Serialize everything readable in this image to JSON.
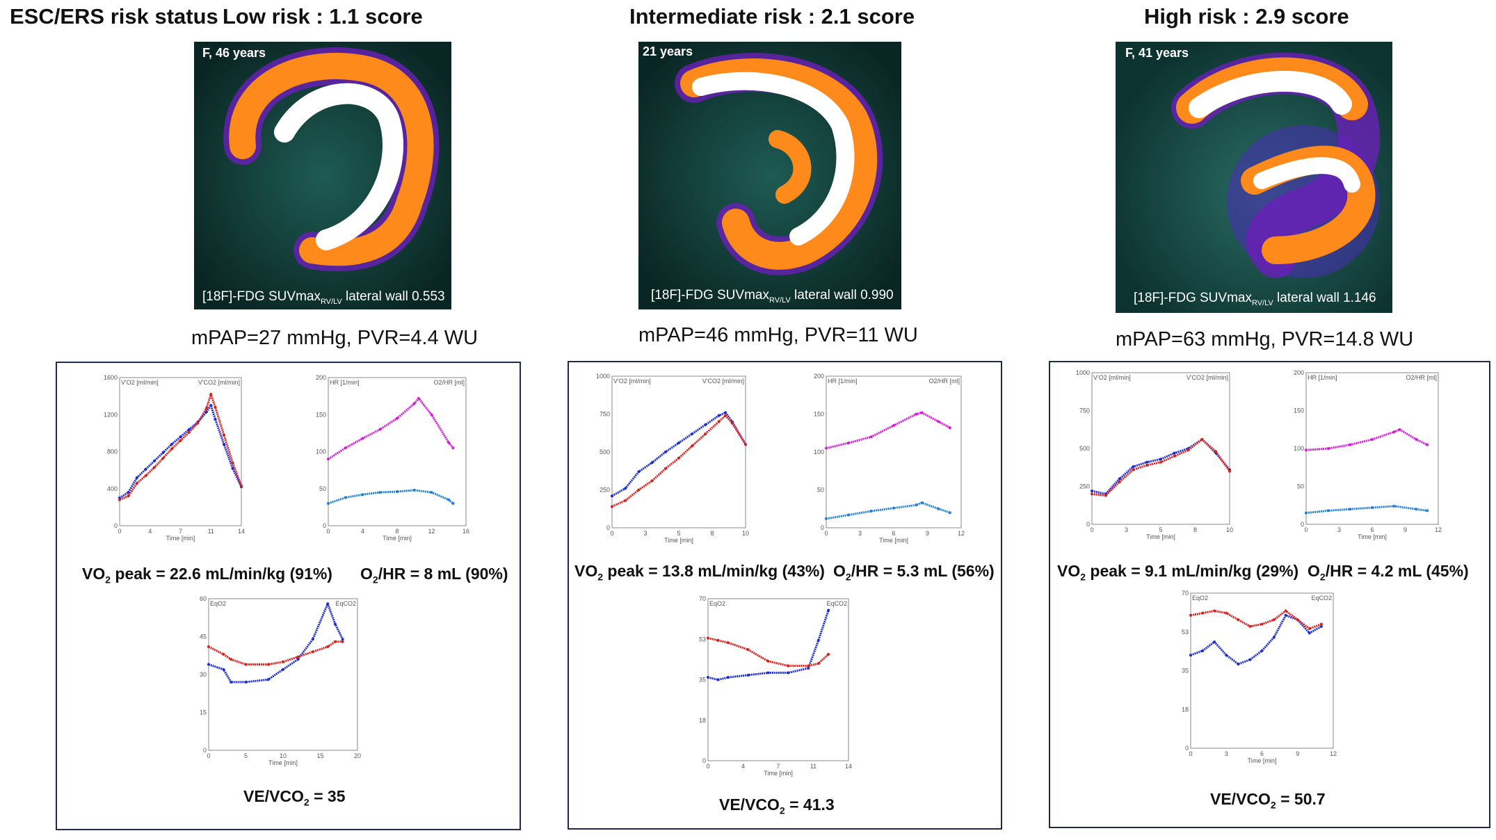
{
  "header": {
    "status_label": "ESC/ERS risk status",
    "low": "Low risk : 1.1 score",
    "intermediate": "Intermediate risk : 2.1 score",
    "high": "High risk : 2.9 score"
  },
  "panels": [
    {
      "patient": "F, 46 years",
      "pet_caption_pre": "[18F]-FDG SUVmax",
      "pet_caption_sub": "RV/LV",
      "pet_caption_post": " lateral wall 0.553",
      "hemodynamics": "mPAP=27 mmHg, PVR=4.4 WU",
      "vo2_pre": "VO",
      "vo2_sub": "2",
      "vo2_post": " peak = 22.6 mL/min/kg (91%)",
      "o2hr_pre": "O",
      "o2hr_sub": "2",
      "o2hr_post": "/HR = 8 mL (90%)",
      "ve_pre": "VE/VCO",
      "ve_sub": "2",
      "ve_post": " = 35"
    },
    {
      "patient": "21 years",
      "pet_caption_pre": "[18F]-FDG SUVmax",
      "pet_caption_sub": "RV/LV",
      "pet_caption_post": " lateral wall 0.990",
      "hemodynamics": "mPAP=46 mmHg, PVR=11 WU",
      "vo2_pre": "VO",
      "vo2_sub": "2",
      "vo2_post": " peak = 13.8 mL/min/kg (43%)",
      "o2hr_pre": "O",
      "o2hr_sub": "2",
      "o2hr_post": "/HR = 5.3 mL (56%)",
      "ve_pre": "VE/VCO",
      "ve_sub": "2",
      "ve_post": " = 41.3"
    },
    {
      "patient": "F, 41 years",
      "pet_caption_pre": "[18F]-FDG SUVmax",
      "pet_caption_sub": "RV/LV",
      "pet_caption_post": " lateral wall 1.146",
      "hemodynamics": "mPAP=63 mmHg, PVR=14.8 WU",
      "vo2_pre": "VO",
      "vo2_sub": "2",
      "vo2_post": " peak = 9.1 mL/min/kg (29%)",
      "o2hr_pre": "O",
      "o2hr_sub": "2",
      "o2hr_post": "/HR = 4.2 mL (45%)",
      "ve_pre": "VE/VCO",
      "ve_sub": "2",
      "ve_post": " = 50.7"
    }
  ],
  "chart_data": [
    {
      "type": "scatter",
      "panel": "low",
      "name": "VO2/VCO2 vs time",
      "xlabel": "Time [min]",
      "ylabel_left": "V'O2 [ml/min]",
      "ylabel_right": "V'CO2 [ml/min]",
      "xlim": [
        0,
        14
      ],
      "ylim": [
        0,
        1600
      ],
      "series": [
        {
          "name": "V'O2",
          "color": "#1a2bd6",
          "x": [
            0,
            1,
            2,
            3,
            4,
            5,
            6,
            7,
            8,
            9,
            10,
            10.5,
            11,
            12,
            13,
            14
          ],
          "y": [
            300,
            360,
            520,
            610,
            700,
            790,
            880,
            960,
            1040,
            1120,
            1230,
            1300,
            1150,
            880,
            620,
            420
          ]
        },
        {
          "name": "V'CO2",
          "color": "#d8201c",
          "x": [
            0,
            1,
            2,
            3,
            4,
            5,
            6,
            7,
            8,
            9,
            10,
            10.5,
            11,
            12,
            13,
            14
          ],
          "y": [
            280,
            320,
            460,
            540,
            630,
            730,
            830,
            920,
            1010,
            1110,
            1270,
            1420,
            1280,
            980,
            680,
            430
          ]
        }
      ]
    },
    {
      "type": "scatter",
      "panel": "low",
      "name": "HR and O2/HR",
      "xlabel": "Time [min]",
      "ylabel_left": "HR [1/min]",
      "ylabel_right": "O2/HR [ml]",
      "xlim": [
        0,
        16
      ],
      "ylim": [
        0,
        200
      ],
      "series": [
        {
          "name": "HR",
          "color": "#d81ad8",
          "x": [
            0,
            2,
            4,
            6,
            8,
            10,
            10.5,
            12,
            14,
            14.5
          ],
          "y": [
            90,
            105,
            118,
            130,
            145,
            165,
            172,
            150,
            112,
            105
          ]
        },
        {
          "name": "O2/HR",
          "color": "#1f7fd8",
          "x": [
            0,
            2,
            4,
            6,
            8,
            10,
            12,
            14,
            14.5
          ],
          "y": [
            30,
            38,
            42,
            45,
            46,
            48,
            45,
            35,
            30
          ]
        }
      ]
    },
    {
      "type": "scatter",
      "panel": "low",
      "name": "Ventilatory equivalents",
      "xlabel": "Time [min]",
      "ylabel_left": "EqO2",
      "ylabel_right": "EqCO2",
      "xlim": [
        0,
        20
      ],
      "ylim": [
        0,
        60
      ],
      "series": [
        {
          "name": "EqO2",
          "color": "#1a2bd6",
          "x": [
            0,
            2,
            3,
            5,
            8,
            10,
            12,
            14,
            16,
            17,
            18
          ],
          "y": [
            34,
            32,
            27,
            27,
            28,
            32,
            36,
            44,
            58,
            50,
            44
          ]
        },
        {
          "name": "EqCO2",
          "color": "#d8201c",
          "x": [
            0,
            2,
            3,
            5,
            8,
            10,
            12,
            14,
            16,
            17,
            18
          ],
          "y": [
            41,
            38,
            36,
            34,
            34,
            35,
            37,
            39,
            41,
            43,
            43
          ]
        }
      ]
    },
    {
      "type": "scatter",
      "panel": "intermediate",
      "name": "VO2/VCO2 vs time",
      "xlabel": "Time [min]",
      "ylabel_left": "V'O2 [ml/min]",
      "ylabel_right": "V'CO2 [ml/min]",
      "xlim": [
        0,
        10
      ],
      "ylim": [
        0,
        1000
      ],
      "series": [
        {
          "name": "V'O2",
          "color": "#1a2bd6",
          "x": [
            0,
            1,
            2,
            3,
            4,
            5,
            6,
            7,
            8,
            8.5,
            9,
            10
          ],
          "y": [
            210,
            260,
            370,
            430,
            500,
            560,
            620,
            680,
            740,
            760,
            700,
            550
          ]
        },
        {
          "name": "V'CO2",
          "color": "#d8201c",
          "x": [
            0,
            1,
            2,
            3,
            4,
            5,
            6,
            7,
            8,
            8.5,
            9,
            10
          ],
          "y": [
            140,
            180,
            250,
            310,
            390,
            460,
            540,
            620,
            700,
            740,
            690,
            550
          ]
        }
      ]
    },
    {
      "type": "scatter",
      "panel": "intermediate",
      "name": "HR and O2/HR",
      "xlabel": "Time [min]",
      "ylabel_left": "HR [1/min]",
      "ylabel_right": "O2/HR [ml]",
      "xlim": [
        0,
        12
      ],
      "ylim": [
        0,
        200
      ],
      "series": [
        {
          "name": "HR",
          "color": "#d81ad8",
          "x": [
            0,
            2,
            4,
            6,
            8,
            8.5,
            10,
            11
          ],
          "y": [
            105,
            112,
            120,
            135,
            150,
            152,
            140,
            132
          ]
        },
        {
          "name": "O2/HR",
          "color": "#1f7fd8",
          "x": [
            0,
            2,
            4,
            6,
            8,
            8.5,
            10,
            11
          ],
          "y": [
            12,
            17,
            22,
            26,
            30,
            33,
            25,
            20
          ]
        }
      ]
    },
    {
      "type": "scatter",
      "panel": "intermediate",
      "name": "Ventilatory equivalents",
      "xlabel": "Time [min]",
      "ylabel_left": "EqO2",
      "ylabel_right": "EqCO2",
      "xlim": [
        0,
        14
      ],
      "ylim": [
        0,
        70
      ],
      "series": [
        {
          "name": "EqO2",
          "color": "#1a2bd6",
          "x": [
            0,
            1,
            2,
            4,
            6,
            8,
            10,
            11,
            12
          ],
          "y": [
            36,
            35,
            36,
            37,
            38,
            38,
            40,
            52,
            65
          ]
        },
        {
          "name": "EqCO2",
          "color": "#d8201c",
          "x": [
            0,
            1,
            2,
            4,
            6,
            8,
            10,
            11,
            12
          ],
          "y": [
            53,
            52,
            51,
            48,
            43,
            41,
            41,
            42,
            46
          ]
        }
      ]
    },
    {
      "type": "scatter",
      "panel": "high",
      "name": "VO2/VCO2 vs time",
      "xlabel": "Time [min]",
      "ylabel_left": "V'O2 [ml/min]",
      "ylabel_right": "V'CO2 [ml/min]",
      "xlim": [
        0,
        10
      ],
      "ylim": [
        0,
        1000
      ],
      "series": [
        {
          "name": "V'O2",
          "color": "#1a2bd6",
          "x": [
            0,
            1,
            2,
            3,
            4,
            5,
            6,
            7,
            8,
            9,
            10
          ],
          "y": [
            220,
            200,
            300,
            380,
            410,
            430,
            470,
            500,
            560,
            470,
            360
          ]
        },
        {
          "name": "V'CO2",
          "color": "#d8201c",
          "x": [
            0,
            1,
            2,
            3,
            4,
            5,
            6,
            7,
            8,
            9,
            10
          ],
          "y": [
            200,
            190,
            280,
            360,
            390,
            410,
            450,
            490,
            560,
            480,
            350
          ]
        }
      ]
    },
    {
      "type": "scatter",
      "panel": "high",
      "name": "HR and O2/HR",
      "xlabel": "Time [min]",
      "ylabel_left": "HR [1/min]",
      "ylabel_right": "O2/HR [ml]",
      "xlim": [
        0,
        12
      ],
      "ylim": [
        0,
        200
      ],
      "series": [
        {
          "name": "HR",
          "color": "#d81ad8",
          "x": [
            0,
            2,
            4,
            6,
            8,
            8.5,
            10,
            11
          ],
          "y": [
            98,
            100,
            105,
            112,
            122,
            125,
            112,
            105
          ]
        },
        {
          "name": "O2/HR",
          "color": "#1f7fd8",
          "x": [
            0,
            2,
            4,
            6,
            8,
            10,
            11
          ],
          "y": [
            15,
            18,
            20,
            22,
            24,
            20,
            18
          ]
        }
      ]
    },
    {
      "type": "scatter",
      "panel": "high",
      "name": "Ventilatory equivalents",
      "xlabel": "Time [min]",
      "ylabel_left": "EqO2",
      "ylabel_right": "EqCO2",
      "xlim": [
        0,
        12
      ],
      "ylim": [
        0,
        70
      ],
      "series": [
        {
          "name": "EqO2",
          "color": "#1a2bd6",
          "x": [
            0,
            1,
            2,
            3,
            4,
            5,
            6,
            7,
            8,
            9,
            10,
            11
          ],
          "y": [
            42,
            44,
            48,
            42,
            38,
            40,
            44,
            50,
            60,
            58,
            52,
            55
          ]
        },
        {
          "name": "EqCO2",
          "color": "#d8201c",
          "x": [
            0,
            1,
            2,
            3,
            4,
            5,
            6,
            7,
            8,
            9,
            10,
            11
          ],
          "y": [
            60,
            61,
            62,
            61,
            58,
            55,
            56,
            58,
            62,
            58,
            54,
            56
          ]
        }
      ]
    }
  ]
}
